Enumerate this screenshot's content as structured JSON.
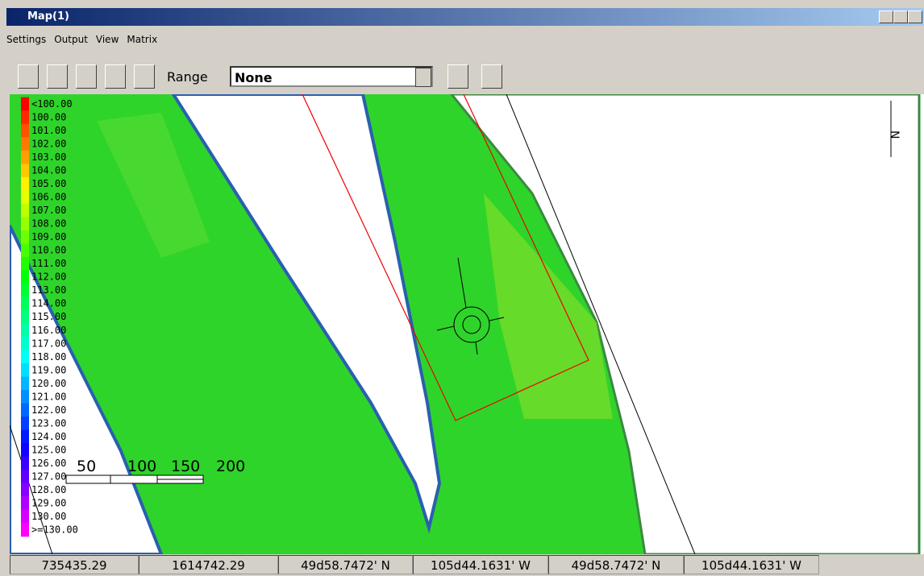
{
  "window": {
    "title": "Map(1)"
  },
  "menu": [
    "Settings",
    "Output",
    "View",
    "Matrix"
  ],
  "toolbar": {
    "range_label": "Range",
    "range_value": "None"
  },
  "legend": [
    "<100.00",
    "100.00",
    "101.00",
    "102.00",
    "103.00",
    "104.00",
    "105.00",
    "106.00",
    "107.00",
    "108.00",
    "109.00",
    "110.00",
    "111.00",
    "112.00",
    "113.00",
    "114.00",
    "115.00",
    "116.00",
    "117.00",
    "118.00",
    "119.00",
    "120.00",
    "121.00",
    "122.00",
    "123.00",
    "124.00",
    "125.00",
    "126.00",
    "127.00",
    "128.00",
    "129.00",
    "130.00",
    ">=130.00"
  ],
  "scale_bar": [
    "50",
    "100",
    "150",
    "200"
  ],
  "north": "N",
  "status": [
    "735435.29",
    "1614742.29",
    "49d58.7472' N",
    "105d44.1631' W",
    "49d58.7472' N",
    "105d44.1631' W"
  ]
}
